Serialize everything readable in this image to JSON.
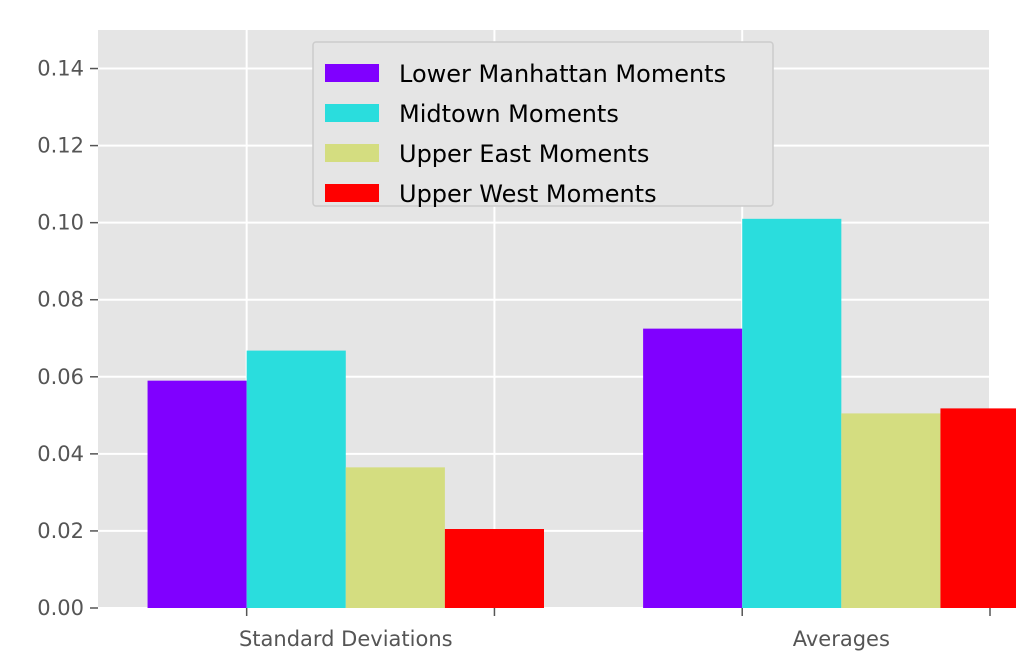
{
  "chart_data": {
    "type": "bar",
    "categories": [
      "Standard Deviations",
      "Averages"
    ],
    "series": [
      {
        "name": "Lower Manhattan Moments",
        "color": "#8000ff",
        "values": [
          0.059,
          0.0725
        ]
      },
      {
        "name": "Midtown Moments",
        "color": "#2adddd",
        "values": [
          0.0668,
          0.101
        ]
      },
      {
        "name": "Upper East Moments",
        "color": "#d4dd80",
        "values": [
          0.0365,
          0.0505
        ]
      },
      {
        "name": "Upper West Moments",
        "color": "#ff0000",
        "values": [
          0.0205,
          0.0518
        ]
      }
    ],
    "ylim": [
      0,
      0.15
    ],
    "yticks": [
      "0.00",
      "0.02",
      "0.04",
      "0.06",
      "0.08",
      "0.10",
      "0.12",
      "0.14"
    ],
    "xlim": [
      -0.5,
      1.3
    ],
    "xgrid_positions": [
      -0.2,
      0.3,
      0.8,
      1.3
    ],
    "grid": true,
    "legend_location": "upper center",
    "style": "ggplot",
    "background_color": "#e5e5e5"
  }
}
